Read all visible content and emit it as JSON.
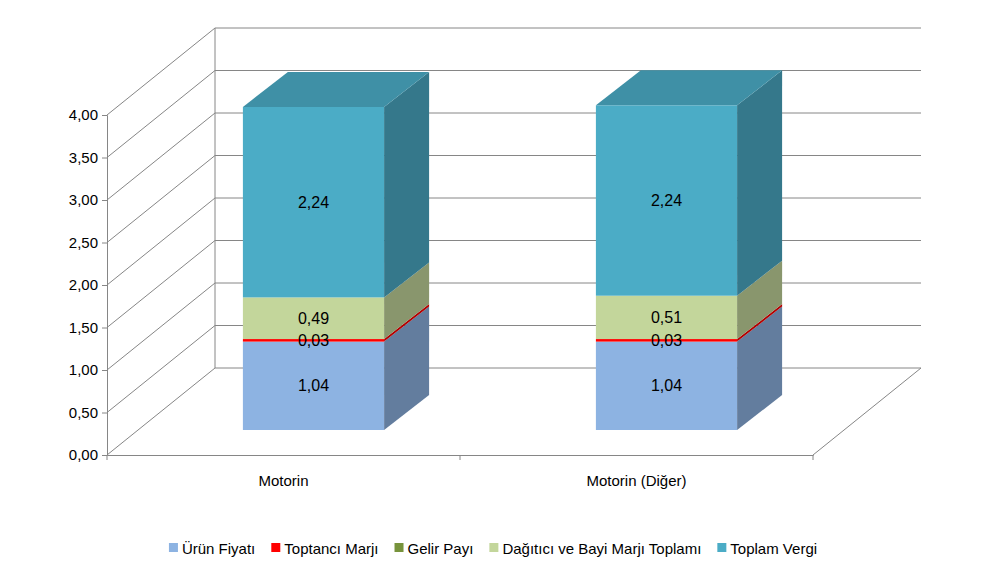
{
  "chart_data": {
    "type": "bar",
    "stacked": true,
    "grid": true,
    "legend": "bottom",
    "data_labels": true,
    "categories": [
      "Motorin",
      "Motorin (Diğer)"
    ],
    "series": [
      {
        "name": "Ürün Fiyatı",
        "color": "#8DB3E2",
        "values": [
          1.04,
          1.04
        ],
        "value_labels": [
          "1,04",
          "1,04"
        ]
      },
      {
        "name": "Toptancı Marjı",
        "color": "#FF0000",
        "values": [
          0.03,
          0.03
        ],
        "value_labels": [
          "0,03",
          "0,03"
        ]
      },
      {
        "name": "Gelir Payı",
        "color": "#77933C",
        "values": [
          0,
          0
        ]
      },
      {
        "name": "Dağıtıcı ve Bayi Marjı Toplamı",
        "color": "#C3D69B",
        "values": [
          0.49,
          0.51
        ],
        "value_labels": [
          "0,49",
          "0,51"
        ]
      },
      {
        "name": "Toplam Vergi",
        "color": "#4BACC6",
        "values": [
          2.24,
          2.24
        ],
        "value_labels": [
          "2,24",
          "2,24"
        ]
      }
    ],
    "ylim": [
      0,
      4
    ],
    "yticks": [
      {
        "value": 0,
        "label": "0,00"
      },
      {
        "value": 0.5,
        "label": "0,50"
      },
      {
        "value": 1,
        "label": "1,00"
      },
      {
        "value": 1.5,
        "label": "1,50"
      },
      {
        "value": 2,
        "label": "2,00"
      },
      {
        "value": 2.5,
        "label": "2,50"
      },
      {
        "value": 3,
        "label": "3,00"
      },
      {
        "value": 3.5,
        "label": "3,50"
      },
      {
        "value": 4,
        "label": "4,00"
      }
    ]
  }
}
